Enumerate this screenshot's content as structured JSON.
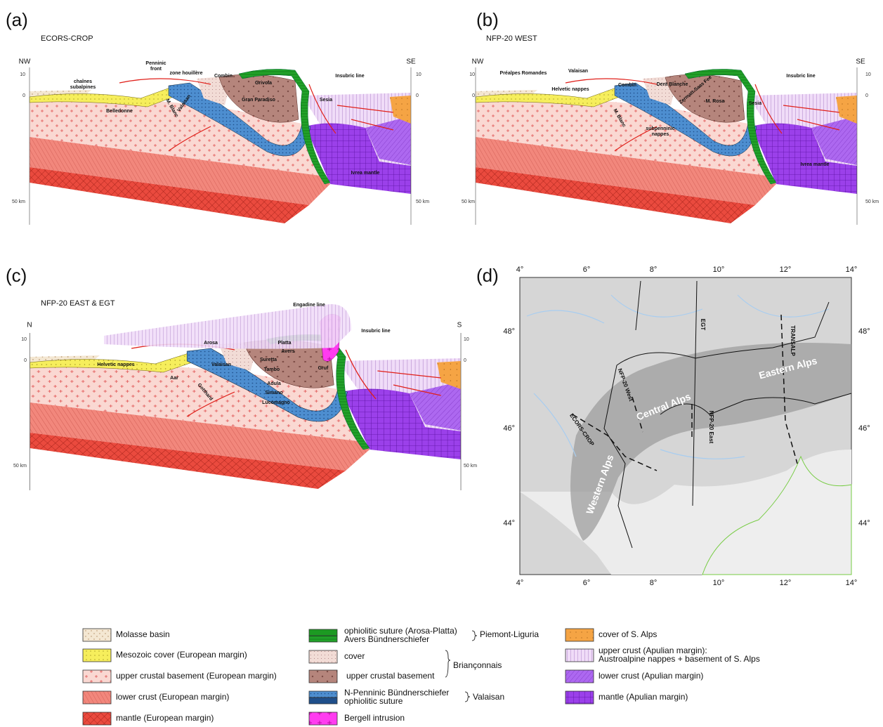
{
  "panels": [
    {
      "letter": "(a)",
      "title": "ECORS-CROP",
      "left_end": "NW",
      "right_end": "SE",
      "axis_left": [
        "10",
        "0",
        "50 km"
      ],
      "axis_right": [
        "10",
        "0",
        "50 km"
      ],
      "labels": [
        [
          "chaînes",
          "subalpines"
        ],
        [
          "Penninic",
          "front"
        ],
        [
          "zone houillère"
        ],
        [
          "Combin"
        ],
        [
          "Grivola"
        ],
        [
          "Insubric line"
        ],
        [
          "Belledonne"
        ],
        [
          "Valaisan"
        ],
        [
          "M. Blanc"
        ],
        [
          "Gran Paradiso"
        ],
        [
          "Sesia"
        ],
        [
          "Ivrea mantle"
        ]
      ]
    },
    {
      "letter": "(b)",
      "title": "NFP-20 WEST",
      "left_end": "NW",
      "right_end": "SE",
      "axis_left": [
        "10",
        "0",
        "50 km"
      ],
      "axis_right": [
        "10",
        "0",
        "50 km"
      ],
      "labels": [
        [
          "Préalpes Romandes"
        ],
        [
          "Valaisan"
        ],
        [
          "Helvetic nappes"
        ],
        [
          "Combin"
        ],
        [
          "Dent Blanche"
        ],
        [
          "Zermatt-Saas Fee"
        ],
        [
          "M. Rosa"
        ],
        [
          "Sesia"
        ],
        [
          "Insubric line"
        ],
        [
          "M. Blanc"
        ],
        [
          "subpenninic",
          "nappes"
        ],
        [
          "Ivrea mantle"
        ]
      ]
    },
    {
      "letter": "(c)",
      "title": "NFP-20 EAST & EGT",
      "left_end": "N",
      "right_end": "S",
      "axis_left": [
        "10",
        "0",
        "50 km"
      ],
      "axis_right": [
        "10",
        "0",
        "50 km"
      ],
      "labels": [
        [
          "Engadine line"
        ],
        [
          "Insubric line"
        ],
        [
          "Arosa"
        ],
        [
          "Platta"
        ],
        [
          "Avers"
        ],
        [
          "Helvetic nappes"
        ],
        [
          "Valaisan"
        ],
        [
          "Suretta"
        ],
        [
          "Tambo"
        ],
        [
          "Gruf"
        ],
        [
          "Aar"
        ],
        [
          "Gotthard"
        ],
        [
          "Adula"
        ],
        [
          "Simano"
        ],
        [
          "Lucomagno"
        ]
      ]
    }
  ],
  "map": {
    "letter": "(d)",
    "lon_ticks": [
      "4°",
      "6°",
      "8°",
      "10°",
      "12°",
      "14°"
    ],
    "lat_ticks": [
      "48°",
      "46°",
      "44°"
    ],
    "labels": [
      "EGT",
      "TRANSALP",
      "NFP-20 West",
      "Central Alps",
      "NFP-20 East",
      "Eastern Alps",
      "ECORS-CROP",
      "Western Alps"
    ]
  },
  "legend": {
    "items": [
      [
        "Molasse basin"
      ],
      [
        "Mesozoic cover (European margin)"
      ],
      [
        "upper crustal basement (European margin)"
      ],
      [
        "lower crust (European margin)"
      ],
      [
        "mantle (European margin)"
      ],
      [
        "ophiolitic suture (Arosa-Platta)",
        "Avers Bündnerschiefer"
      ],
      [
        "cover"
      ],
      [
        "upper crustal basement"
      ],
      [
        "N-Penninic Bündnerschiefer",
        "ophiolitic suture"
      ],
      [
        "Bergell intrusion"
      ],
      [
        "cover of S. Alps"
      ],
      [
        "upper crust (Apulian margin):",
        "Austroalpine nappes + basement of S. Alps"
      ],
      [
        "lower crust (Apulian margin)"
      ],
      [
        "mantle (Apulian margin)"
      ]
    ],
    "groups": [
      "Piemont-Liguria",
      "Briançonnais",
      "Valaisan"
    ]
  }
}
